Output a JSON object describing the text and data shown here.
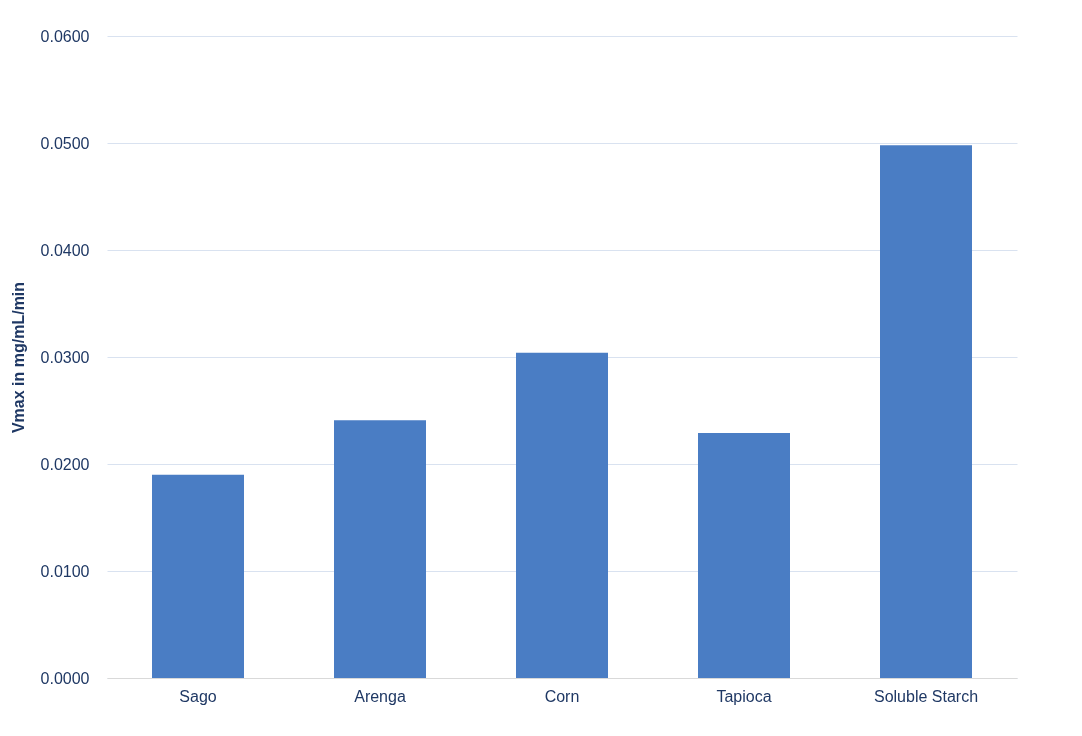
{
  "chart_data": {
    "type": "bar",
    "ylabel": "Vmax in mg/mL/min",
    "categories": [
      "Sago",
      "Arenga",
      "Corn",
      "Tapioca",
      "Soluble Starch"
    ],
    "values": [
      0.019,
      0.0241,
      0.0304,
      0.0229,
      0.0498
    ],
    "color": "#4a7dc4",
    "ylim": [
      0,
      0.06
    ],
    "yticks": [
      {
        "value": 0,
        "label": "0.0000"
      },
      {
        "value": 0.01,
        "label": "0.0100"
      },
      {
        "value": 0.02,
        "label": "0.0200"
      },
      {
        "value": 0.03,
        "label": "0.0300"
      },
      {
        "value": 0.04,
        "label": "0.0400"
      },
      {
        "value": 0.05,
        "label": "0.0500"
      },
      {
        "value": 0.06,
        "label": "0.0600"
      }
    ],
    "grid": "y"
  }
}
